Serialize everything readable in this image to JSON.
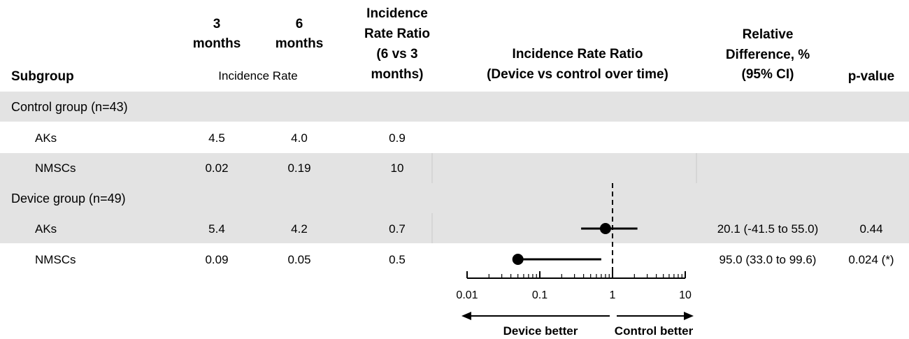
{
  "headers": {
    "subgroup": "Subgroup",
    "m3": [
      "3",
      "months"
    ],
    "m6": [
      "6",
      "months"
    ],
    "incidence_rate": "Incidence Rate",
    "irr_time": [
      "Incidence",
      "Rate Ratio",
      "(6 vs 3",
      "months)"
    ],
    "irr_forest": [
      "Incidence Rate Ratio",
      "(Device vs control over time)"
    ],
    "rel_diff": [
      "Relative",
      "Difference, %",
      "(95% CI)"
    ],
    "pvalue": "p-value"
  },
  "groups": [
    {
      "label": "Control group (n=43)",
      "rows": [
        {
          "name": "AKs",
          "m3": "4.5",
          "m6": "4.0",
          "irr": "0.9",
          "rel": "",
          "p": ""
        },
        {
          "name": "NMSCs",
          "m3": "0.02",
          "m6": "0.19",
          "irr": "10",
          "rel": "",
          "p": ""
        }
      ]
    },
    {
      "label": "Device group (n=49)",
      "rows": [
        {
          "name": "AKs",
          "m3": "5.4",
          "m6": "4.2",
          "irr": "0.7",
          "rel": "20.1 (-41.5 to 55.0)",
          "p": "0.44"
        },
        {
          "name": "NMSCs",
          "m3": "0.09",
          "m6": "0.05",
          "irr": "0.5",
          "rel": "95.0 (33.0 to 99.6)",
          "p": "0.024 (*)"
        }
      ]
    }
  ],
  "axis": {
    "tick_labels": [
      "0.01",
      "0.1",
      "1",
      "10"
    ],
    "device_better": "Device better",
    "control_better": "Control better"
  },
  "chart_data": {
    "type": "forest",
    "xscale": "log",
    "xlim": [
      0.01,
      10
    ],
    "reference_line": 1,
    "points": [
      {
        "group": "Device group (n=49)",
        "subgroup": "AKs",
        "estimate": 0.8,
        "ci": [
          0.37,
          2.2
        ]
      },
      {
        "group": "Device group (n=49)",
        "subgroup": "NMSCs",
        "estimate": 0.05,
        "ci": [
          0.05,
          0.7
        ]
      }
    ]
  },
  "colors": {
    "shade": "#e3e3e3",
    "separator": "#c8c8c8",
    "ink": "#000000"
  }
}
